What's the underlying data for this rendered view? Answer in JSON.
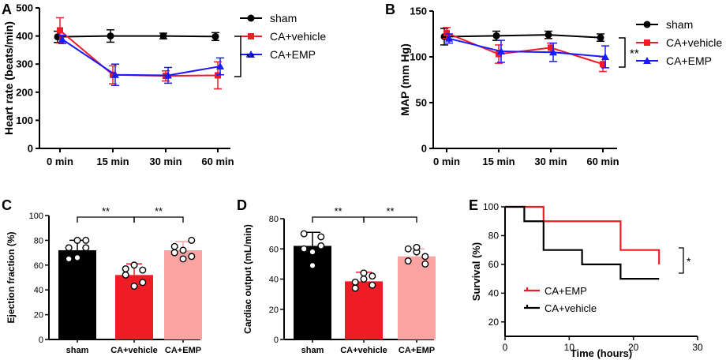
{
  "panels": {
    "a": "A",
    "b": "B",
    "c": "C",
    "d": "D",
    "e": "E"
  },
  "colors": {
    "sham": "#000000",
    "vehicle": "#ee1c25",
    "emp": "#1a1aff",
    "emp_bar": "#f9a3a3"
  },
  "chart_data": [
    {
      "id": "A",
      "type": "line",
      "title": "",
      "xlabel": "",
      "ylabel": "Heart rate (beats/min)",
      "categories": [
        "0 min",
        "15 min",
        "30 min",
        "60 min"
      ],
      "ylim": [
        0,
        500
      ],
      "yticks": [
        0,
        100,
        200,
        300,
        400,
        500
      ],
      "legend": [
        "sham",
        "CA+vehicle",
        "CA+EMP"
      ],
      "legend_position": "right",
      "series": [
        {
          "name": "sham",
          "values": [
            397,
            400,
            400,
            398
          ],
          "errors": [
            20,
            22,
            10,
            14
          ]
        },
        {
          "name": "CA+vehicle",
          "values": [
            420,
            262,
            258,
            260
          ],
          "errors": [
            45,
            32,
            18,
            48
          ]
        },
        {
          "name": "CA+EMP",
          "values": [
            388,
            262,
            260,
            292
          ],
          "errors": [
            15,
            38,
            28,
            30
          ]
        }
      ],
      "significance": "**"
    },
    {
      "id": "B",
      "type": "line",
      "title": "",
      "xlabel": "",
      "ylabel": "MAP (mm Hg)",
      "categories": [
        "0 min",
        "15 min",
        "30 min",
        "60 min"
      ],
      "ylim": [
        0,
        150
      ],
      "yticks": [
        0,
        50,
        100,
        150
      ],
      "legend": [
        "sham",
        "CA+vehicle",
        "CA+EMP"
      ],
      "legend_position": "right",
      "series": [
        {
          "name": "sham",
          "values": [
            122,
            123,
            124,
            121
          ],
          "errors": [
            9,
            5,
            4,
            4
          ]
        },
        {
          "name": "CA+vehicle",
          "values": [
            126,
            103,
            110,
            92
          ],
          "errors": [
            6,
            10,
            5,
            8
          ]
        },
        {
          "name": "CA+EMP",
          "values": [
            120,
            106,
            105,
            100
          ],
          "errors": [
            5,
            12,
            10,
            12
          ]
        }
      ],
      "significance": "**"
    },
    {
      "id": "C",
      "type": "bar",
      "title": "",
      "xlabel": "",
      "ylabel": "Ejection fraction (%)",
      "categories": [
        "sham",
        "CA+vehicle",
        "CA+EMP"
      ],
      "values": [
        72,
        52,
        72
      ],
      "errors": [
        8,
        9,
        7
      ],
      "points": [
        [
          74,
          80,
          65,
          66,
          74,
          80
        ],
        [
          57,
          46,
          52,
          43,
          56,
          60
        ],
        [
          75,
          80,
          70,
          65,
          67,
          72
        ]
      ],
      "ylim": [
        0,
        100
      ],
      "yticks": [
        0,
        20,
        40,
        60,
        80,
        100
      ],
      "significance": [
        {
          "pair": [
            0,
            1
          ],
          "label": "**"
        },
        {
          "pair": [
            1,
            2
          ],
          "label": "**"
        }
      ]
    },
    {
      "id": "D",
      "type": "bar",
      "title": "",
      "xlabel": "",
      "ylabel": "Cardiac output (mL/min)",
      "categories": [
        "sham",
        "CA+vehicle",
        "CA+EMP"
      ],
      "values": [
        62,
        38.5,
        55
      ],
      "errors": [
        9,
        6,
        5
      ],
      "points": [
        [
          70,
          62,
          60,
          49,
          68,
          58
        ],
        [
          38,
          42,
          34,
          44,
          36,
          40
        ],
        [
          60,
          55,
          52,
          58,
          50,
          61
        ]
      ],
      "ylim": [
        0,
        80
      ],
      "yticks": [
        0,
        20,
        40,
        60,
        80
      ],
      "significance": [
        {
          "pair": [
            0,
            1
          ],
          "label": "**"
        },
        {
          "pair": [
            1,
            2
          ],
          "label": "**"
        }
      ]
    },
    {
      "id": "E",
      "type": "line",
      "title": "",
      "xlabel": "Time (hours)",
      "ylabel": "Survival (%)",
      "xlim": [
        0,
        30
      ],
      "xticks": [
        0,
        10,
        20,
        30
      ],
      "ylim": [
        10,
        100
      ],
      "yticks": [
        20,
        40,
        60,
        80,
        100
      ],
      "legend": [
        "CA+EMP",
        "CA+vehicle"
      ],
      "legend_position": "bottom-left",
      "series": [
        {
          "name": "CA+EMP",
          "steps": [
            [
              0,
              100
            ],
            [
              6,
              100
            ],
            [
              6,
              90
            ],
            [
              18,
              90
            ],
            [
              18,
              70
            ],
            [
              24,
              70
            ],
            [
              24,
              60
            ]
          ]
        },
        {
          "name": "CA+vehicle",
          "steps": [
            [
              0,
              100
            ],
            [
              3,
              100
            ],
            [
              3,
              90
            ],
            [
              6,
              90
            ],
            [
              6,
              70
            ],
            [
              12,
              70
            ],
            [
              12,
              60
            ],
            [
              18,
              60
            ],
            [
              18,
              50
            ],
            [
              24,
              50
            ]
          ]
        }
      ],
      "significance": "*"
    }
  ]
}
